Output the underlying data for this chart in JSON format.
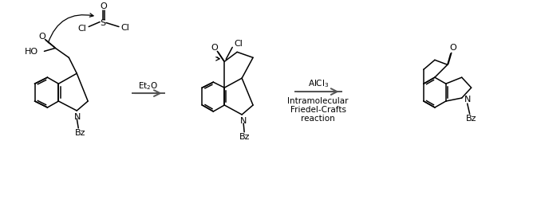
{
  "bg_color": "#ffffff",
  "line_color": "#000000",
  "arrow_color": "#555555",
  "text_color": "#000000",
  "figsize": [
    6.68,
    2.65
  ],
  "dpi": 100,
  "reaction1_label": "Et$_2$O",
  "reaction2_label1": "AlCl$_3$",
  "reaction2_label2": "Intramolecular",
  "reaction2_label3": "Friedel-Crafts",
  "reaction2_label4": "reaction",
  "label_fontsize": 7.5,
  "struct_fontsize": 8.0
}
